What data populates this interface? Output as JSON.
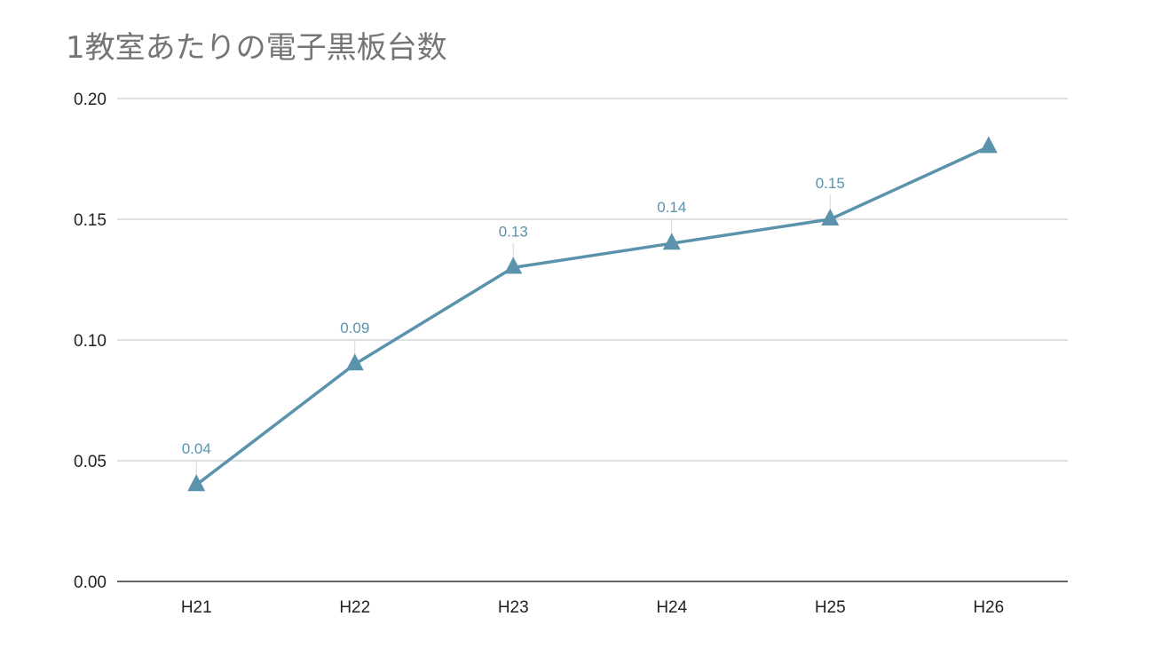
{
  "chart_data": {
    "type": "line",
    "title": "1教室あたりの電子黒板台数",
    "xlabel": "",
    "ylabel": "",
    "categories": [
      "H21",
      "H22",
      "H23",
      "H24",
      "H25",
      "H26"
    ],
    "series": [
      {
        "values": [
          0.04,
          0.09,
          0.13,
          0.14,
          0.15,
          0.18
        ],
        "data_labels": [
          "0.04",
          "0.09",
          "0.13",
          "0.14",
          "0.15",
          ""
        ],
        "marker": "triangle",
        "color": "#5b93ad"
      }
    ],
    "ylim": [
      0,
      0.2
    ],
    "yticks": [
      "0.00",
      "0.05",
      "0.10",
      "0.15",
      "0.20"
    ],
    "ytick_values": [
      0,
      0.05,
      0.1,
      0.15,
      0.2
    ],
    "grid": true,
    "legend": "none",
    "colors": {
      "gridline": "#cccccc",
      "axis": "#333333",
      "title": "#757575"
    }
  }
}
